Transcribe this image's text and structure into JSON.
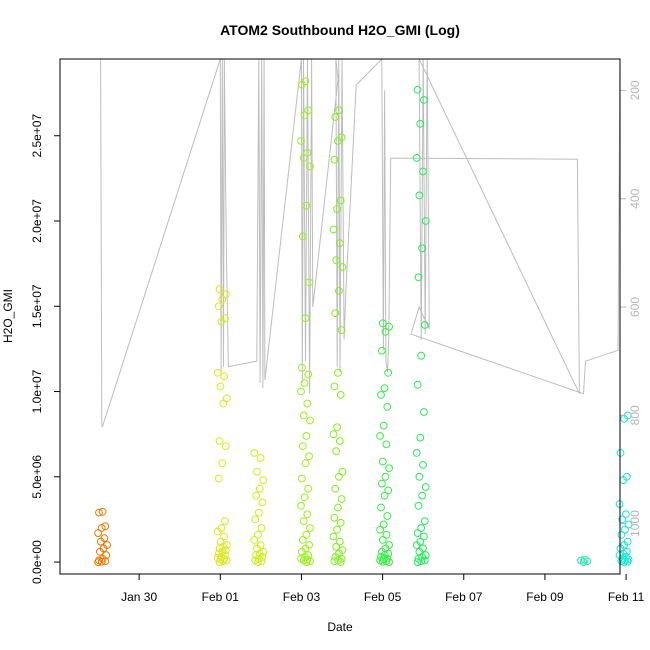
{
  "chart_data": {
    "type": "scatter",
    "title": "ATOM2 Southbound H2O_GMI (Log)",
    "xlabel": "Date",
    "ylabel": "H2O_GMI",
    "x_unit": "days relative to Jan 30 (calendar date ticks)",
    "xlim": [
      -1.95,
      11.85
    ],
    "ylim": [
      -700000,
      29500000
    ],
    "x_ticks": [
      {
        "value": 0,
        "label": "Jan 30"
      },
      {
        "value": 2,
        "label": "Feb 01"
      },
      {
        "value": 4,
        "label": "Feb 03"
      },
      {
        "value": 6,
        "label": "Feb 05"
      },
      {
        "value": 8,
        "label": "Feb 07"
      },
      {
        "value": 10,
        "label": "Feb 09"
      },
      {
        "value": 12,
        "label": "Feb 11"
      }
    ],
    "y_ticks": [
      {
        "value": 0,
        "label": "0.0e+00"
      },
      {
        "value": 5000000,
        "label": "5.0e+06"
      },
      {
        "value": 10000000,
        "label": "1.0e+07"
      },
      {
        "value": 15000000,
        "label": "1.5e+07"
      },
      {
        "value": 20000000,
        "label": "2.0e+07"
      },
      {
        "value": 25000000,
        "label": "2.5e+07"
      }
    ],
    "right_axis": {
      "reversed": true,
      "ylim": [
        1093,
        142
      ],
      "ticks": [
        200,
        400,
        600,
        800,
        1000
      ],
      "tick_labels": [
        "200",
        "400",
        "600",
        "800",
        "1000"
      ],
      "color": "#b5b5b5"
    },
    "grid": false,
    "point_style": "open-circle",
    "color_ramp": [
      "#ee7700",
      "#d9e61c",
      "#99ef17",
      "#34ec3d",
      "#20e89a",
      "#16e8cf"
    ],
    "flights": [
      {
        "t": -0.9,
        "color": "#ee7700",
        "values": [
          0,
          20000,
          50000,
          100000,
          200000,
          400000,
          600000,
          800000,
          1000000,
          1200000,
          1400000,
          1700000,
          2000000,
          2100000,
          2900000,
          2950000
        ]
      },
      {
        "t": 2.05,
        "color": "#dce820",
        "values": [
          0,
          50000,
          100000,
          150000,
          200000,
          250000,
          300000,
          400000,
          500000,
          600000,
          700000,
          800000,
          900000,
          1000000,
          1200000,
          1500000,
          1800000,
          2000000,
          2400000,
          4900000,
          5800000,
          6800000,
          7100000,
          9300000,
          9600000,
          10300000,
          10900000,
          11100000,
          14100000,
          14300000,
          15000000,
          15400000,
          15700000,
          16000000
        ]
      },
      {
        "t": 2.95,
        "color": "#cfec1e",
        "values": [
          0,
          50000,
          100000,
          200000,
          300000,
          400000,
          500000,
          600000,
          800000,
          1000000,
          1300000,
          1600000,
          2000000,
          2500000,
          2900000,
          3500000,
          3900000,
          4300000,
          4800000,
          5300000,
          6100000,
          6400000
        ]
      },
      {
        "t": 4.1,
        "color": "#9af01c",
        "values": [
          0,
          50000,
          100000,
          150000,
          200000,
          300000,
          400000,
          600000,
          800000,
          1000000,
          1300000,
          1600000,
          2000000,
          2400000,
          2800000,
          3300000,
          3800000,
          4300000,
          4900000,
          5800000,
          6200000,
          6800000,
          7400000,
          8300000,
          8600000,
          9300000,
          10000000,
          10500000,
          11000000,
          11400000,
          14300000,
          16400000,
          19100000,
          20900000,
          23200000,
          23700000,
          24000000,
          24700000,
          26200000,
          26500000,
          28000000,
          28200000
        ]
      },
      {
        "t": 4.9,
        "color": "#82f01e",
        "values": [
          0,
          50000,
          100000,
          200000,
          300000,
          500000,
          700000,
          900000,
          1200000,
          1500000,
          1900000,
          2300000,
          2600000,
          3200000,
          3700000,
          4300000,
          5000000,
          5300000,
          6500000,
          7100000,
          7500000,
          7900000,
          9800000,
          10300000,
          11100000,
          13600000,
          14600000,
          15900000,
          17300000,
          17700000,
          18700000,
          19500000,
          20700000,
          21200000,
          23600000,
          24700000,
          24900000,
          26100000,
          26500000
        ]
      },
      {
        "t": 6.05,
        "color": "#3aec46",
        "values": [
          0,
          20000,
          50000,
          100000,
          150000,
          200000,
          300000,
          400000,
          500000,
          600000,
          800000,
          1000000,
          1300000,
          1600000,
          1900000,
          2200000,
          2700000,
          3200000,
          3900000,
          4200000,
          4600000,
          5000000,
          5500000,
          5900000,
          6900000,
          7400000,
          8000000,
          9100000,
          9800000,
          10200000,
          11100000,
          12400000,
          13500000,
          13800000,
          14000000
        ]
      },
      {
        "t": 6.95,
        "color": "#28ea5c",
        "values": [
          0,
          50000,
          100000,
          200000,
          300000,
          400000,
          600000,
          800000,
          1000000,
          1200000,
          1500000,
          1700000,
          2000000,
          2400000,
          3300000,
          3900000,
          4400000,
          5000000,
          5700000,
          6400000,
          7300000,
          8800000,
          10400000,
          12100000,
          13900000,
          16700000,
          18400000,
          20000000,
          21500000,
          22900000,
          23700000,
          25700000,
          27100000,
          27700000
        ]
      },
      {
        "t": 11.0,
        "color": "#24e8b0",
        "values": [
          0,
          50000,
          100000,
          150000
        ]
      },
      {
        "t": 11.95,
        "color": "#18e8d2",
        "values": [
          0,
          20000,
          50000,
          100000,
          150000,
          200000,
          300000,
          400000,
          500000,
          600000,
          800000,
          1000000,
          1200000,
          1600000,
          1900000,
          2200000,
          2500000,
          2800000,
          3400000,
          4800000,
          5000000,
          6400000,
          8400000,
          8600000
        ]
      }
    ],
    "pressure_track": [
      [
        -1.0,
        142
      ],
      [
        -0.95,
        142
      ],
      [
        -0.92,
        820
      ],
      [
        -0.9,
        820
      ],
      [
        2.0,
        142
      ],
      [
        2.02,
        720
      ],
      [
        2.05,
        142
      ],
      [
        2.08,
        710
      ],
      [
        2.1,
        142
      ],
      [
        2.15,
        500
      ],
      [
        2.2,
        710
      ],
      [
        2.9,
        700
      ],
      [
        2.95,
        142
      ],
      [
        2.98,
        740
      ],
      [
        3.02,
        142
      ],
      [
        3.05,
        750
      ],
      [
        3.08,
        142
      ],
      [
        3.1,
        735
      ],
      [
        4.0,
        142
      ],
      [
        4.02,
        740
      ],
      [
        4.05,
        142
      ],
      [
        4.1,
        700
      ],
      [
        4.15,
        142
      ],
      [
        4.2,
        760
      ],
      [
        4.25,
        142
      ],
      [
        4.28,
        600
      ],
      [
        4.9,
        180
      ],
      [
        4.85,
        142
      ],
      [
        4.88,
        710
      ],
      [
        4.92,
        142
      ],
      [
        4.95,
        720
      ],
      [
        5.0,
        142
      ],
      [
        5.05,
        660
      ],
      [
        5.1,
        560
      ],
      [
        5.35,
        190
      ],
      [
        5.98,
        142
      ],
      [
        6.02,
        680
      ],
      [
        6.05,
        200
      ],
      [
        6.08,
        700
      ],
      [
        6.12,
        720
      ],
      [
        6.15,
        660
      ],
      [
        6.2,
        325
      ],
      [
        10.8,
        327
      ],
      [
        10.85,
        760
      ],
      [
        6.9,
        142
      ],
      [
        6.95,
        660
      ],
      [
        7.0,
        142
      ],
      [
        7.05,
        650
      ],
      [
        7.1,
        142
      ],
      [
        7.15,
        640
      ],
      [
        6.9,
        600
      ],
      [
        6.7,
        650
      ],
      [
        10.95,
        760
      ],
      [
        11.0,
        700
      ],
      [
        11.8,
        680
      ],
      [
        11.85,
        142
      ],
      [
        11.9,
        740
      ],
      [
        11.95,
        142
      ],
      [
        12.0,
        740
      ]
    ]
  }
}
